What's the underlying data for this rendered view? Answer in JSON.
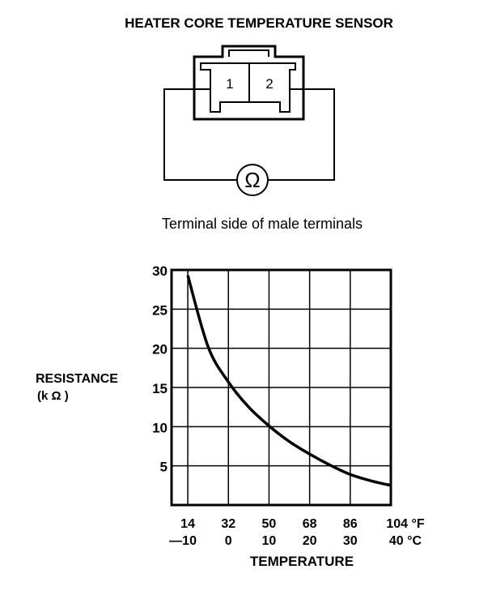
{
  "title": "HEATER CORE TEMPERATURE SENSOR",
  "connector": {
    "terminal_1": "1",
    "terminal_2": "2",
    "meter_symbol": "Ω",
    "caption": "Terminal side of male terminals"
  },
  "chart_data": {
    "type": "line",
    "title": "",
    "xlabel": "TEMPERATURE",
    "ylabel": "RESISTANCE",
    "ylabel_unit": "(k Ω )",
    "x_unit": "°C",
    "xlim": [
      -14,
      40
    ],
    "ylim": [
      0,
      30
    ],
    "grid": true,
    "y_ticks": [
      "30",
      "25",
      "20",
      "15",
      "10",
      "5"
    ],
    "y_tick_values": [
      30,
      25,
      20,
      15,
      10,
      5
    ],
    "x_ticks_f": [
      "14",
      "32",
      "50",
      "68",
      "86",
      "104 °F"
    ],
    "x_ticks_c": [
      "—10",
      "0",
      "10",
      "20",
      "30",
      "40 °C"
    ],
    "x_tick_values": [
      -10,
      0,
      10,
      20,
      30,
      40
    ],
    "series": [
      {
        "x": [
          -10,
          -5,
          0,
          5,
          10,
          15,
          20,
          25,
          30,
          35,
          40
        ],
        "y": [
          29.3,
          20.2,
          15.7,
          12.5,
          10.1,
          8.1,
          6.5,
          5.1,
          3.9,
          3.1,
          2.5
        ]
      }
    ]
  }
}
